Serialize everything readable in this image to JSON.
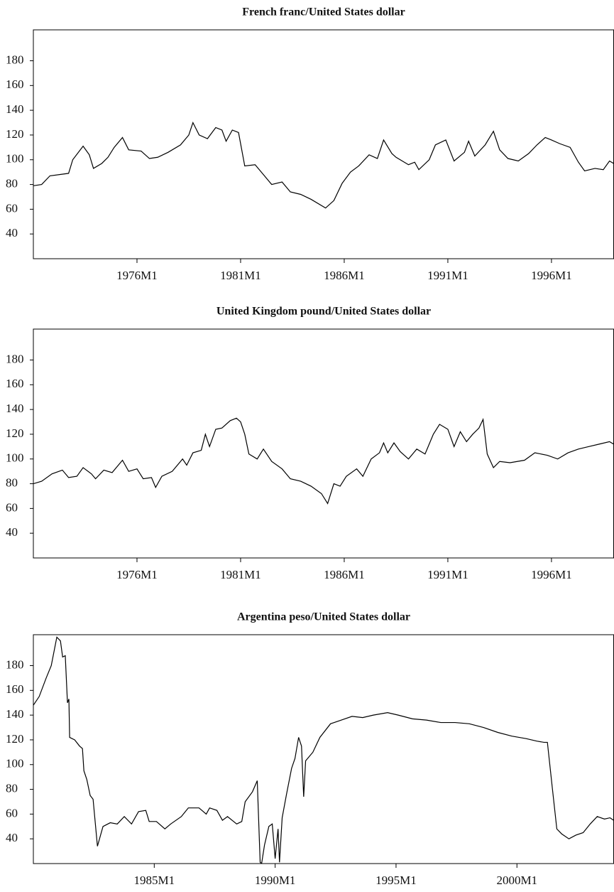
{
  "chart_data": [
    {
      "type": "line",
      "title": "French franc/United States dollar",
      "x": [
        1971.0,
        1971.4,
        1971.8,
        1972.7,
        1972.9,
        1973.4,
        1973.7,
        1973.9,
        1974.3,
        1974.6,
        1974.9,
        1975.3,
        1975.6,
        1976.2,
        1976.6,
        1977.0,
        1977.5,
        1978.1,
        1978.5,
        1978.7,
        1979.0,
        1979.4,
        1979.8,
        1980.1,
        1980.3,
        1980.6,
        1980.9,
        1981.2,
        1981.7,
        1982.1,
        1982.5,
        1983.0,
        1983.4,
        1983.9,
        1984.4,
        1985.1,
        1985.5,
        1985.9,
        1986.3,
        1986.7,
        1987.2,
        1987.6,
        1987.9,
        1988.3,
        1988.5,
        1989.1,
        1989.4,
        1989.6,
        1990.1,
        1990.4,
        1990.9,
        1991.3,
        1991.8,
        1992.0,
        1992.3,
        1992.8,
        1993.2,
        1993.5,
        1993.9,
        1994.4,
        1994.9,
        1995.3,
        1995.7,
        1996.0,
        1996.4,
        1996.9,
        1997.3,
        1997.6,
        1998.1,
        1998.5,
        1998.8,
        1999.0
      ],
      "series": [
        {
          "color": "#000000",
          "values": [
            79,
            80,
            87,
            89,
            100,
            111,
            104,
            93,
            97,
            102,
            110,
            118,
            108,
            107,
            101,
            102,
            106,
            112,
            120,
            130,
            120,
            117,
            126,
            124,
            115,
            124,
            122,
            95,
            96,
            88,
            80,
            82,
            74,
            72,
            68,
            61,
            67,
            81,
            90,
            95,
            104,
            101,
            116,
            105,
            102,
            96,
            98,
            92,
            100,
            112,
            116,
            99,
            106,
            115,
            103,
            112,
            123,
            108,
            101,
            99,
            105,
            112,
            118,
            116,
            113,
            110,
            98,
            91,
            93,
            92,
            99,
            97
          ]
        }
      ],
      "xlim": [
        1971,
        1999
      ],
      "xticks": [
        {
          "value": 1976,
          "label": "1976M1"
        },
        {
          "value": 1981,
          "label": "1981M1"
        },
        {
          "value": 1986,
          "label": "1986M1"
        },
        {
          "value": 1991,
          "label": "1991M1"
        },
        {
          "value": 1996,
          "label": "1996M1"
        }
      ],
      "ylim": [
        20,
        205
      ],
      "yticks": [
        40,
        60,
        80,
        100,
        120,
        140,
        160,
        180
      ]
    },
    {
      "type": "line",
      "title": "United Kingdom pound/United States dollar",
      "x": [
        1971.0,
        1971.4,
        1971.9,
        1972.4,
        1972.7,
        1973.1,
        1973.4,
        1973.8,
        1974.0,
        1974.4,
        1974.8,
        1975.3,
        1975.6,
        1976.0,
        1976.3,
        1976.7,
        1976.9,
        1977.2,
        1977.7,
        1978.2,
        1978.4,
        1978.7,
        1979.1,
        1979.3,
        1979.5,
        1979.8,
        1980.1,
        1980.5,
        1980.8,
        1981.0,
        1981.2,
        1981.4,
        1981.8,
        1982.1,
        1982.5,
        1983.0,
        1983.4,
        1983.9,
        1984.4,
        1984.9,
        1985.2,
        1985.5,
        1985.8,
        1986.1,
        1986.6,
        1986.9,
        1987.3,
        1987.7,
        1987.9,
        1988.1,
        1988.4,
        1988.7,
        1989.1,
        1989.5,
        1989.9,
        1990.3,
        1990.6,
        1991.0,
        1991.3,
        1991.6,
        1991.9,
        1992.2,
        1992.5,
        1992.7,
        1992.9,
        1993.2,
        1993.5,
        1994.0,
        1994.7,
        1995.2,
        1995.8,
        1996.3,
        1996.8,
        1997.3,
        1997.8,
        1998.3,
        1998.8,
        1999.0
      ],
      "series": [
        {
          "color": "#000000",
          "values": [
            80,
            82,
            88,
            91,
            85,
            86,
            93,
            88,
            84,
            91,
            89,
            99,
            90,
            92,
            84,
            85,
            77,
            86,
            90,
            100,
            95,
            105,
            107,
            120,
            110,
            124,
            125,
            131,
            133,
            130,
            120,
            104,
            100,
            108,
            98,
            92,
            84,
            82,
            78,
            72,
            64,
            80,
            78,
            86,
            92,
            86,
            100,
            105,
            113,
            105,
            113,
            106,
            100,
            108,
            104,
            120,
            128,
            124,
            110,
            122,
            114,
            120,
            125,
            132,
            104,
            93,
            98,
            97,
            99,
            105,
            103,
            100,
            105,
            108,
            110,
            112,
            114,
            112
          ]
        }
      ],
      "xlim": [
        1971,
        1999
      ],
      "xticks": [
        {
          "value": 1976,
          "label": "1976M1"
        },
        {
          "value": 1981,
          "label": "1981M1"
        },
        {
          "value": 1986,
          "label": "1986M1"
        },
        {
          "value": 1991,
          "label": "1991M1"
        },
        {
          "value": 1996,
          "label": "1996M1"
        }
      ],
      "ylim": [
        20,
        205
      ],
      "yticks": [
        40,
        60,
        80,
        100,
        120,
        140,
        160,
        180
      ]
    },
    {
      "type": "line",
      "title": "Argentina peso/United States dollar",
      "x": [
        1980.0,
        1980.24,
        1980.53,
        1980.74,
        1980.97,
        1981.12,
        1981.21,
        1981.32,
        1981.41,
        1981.47,
        1981.5,
        1981.71,
        1981.91,
        1982.03,
        1982.09,
        1982.21,
        1982.35,
        1982.47,
        1982.65,
        1982.88,
        1983.18,
        1983.47,
        1983.76,
        1984.06,
        1984.35,
        1984.65,
        1984.79,
        1985.09,
        1985.44,
        1985.68,
        1986.12,
        1986.41,
        1986.85,
        1987.15,
        1987.29,
        1987.59,
        1987.82,
        1988.03,
        1988.41,
        1988.62,
        1988.76,
        1989.06,
        1989.26,
        1989.38,
        1989.44,
        1989.56,
        1989.74,
        1989.88,
        1990.0,
        1990.12,
        1990.18,
        1990.29,
        1990.47,
        1990.68,
        1990.82,
        1990.97,
        1991.09,
        1991.18,
        1991.26,
        1991.56,
        1991.85,
        1992.29,
        1992.74,
        1993.18,
        1993.62,
        1994.06,
        1994.65,
        1995.09,
        1995.68,
        1996.26,
        1996.85,
        1997.44,
        1998.03,
        1998.62,
        1999.21,
        1999.79,
        2000.38,
        2000.82,
        2001.12,
        2001.26,
        2001.47,
        2001.65,
        2001.85,
        2002.15,
        2002.44,
        2002.74,
        2003.03,
        2003.32,
        2003.62,
        2003.85,
        2004.0
      ],
      "series": [
        {
          "color": "#000000",
          "values": [
            148,
            155,
            170,
            180,
            203,
            200,
            187,
            188,
            150,
            153,
            122,
            120,
            115,
            113,
            95,
            88,
            75,
            72,
            34,
            50,
            53,
            52,
            58,
            52,
            62,
            63,
            54,
            54,
            48,
            52,
            58,
            65,
            65,
            60,
            65,
            63,
            55,
            58,
            52,
            54,
            70,
            78,
            87,
            21,
            20,
            35,
            50,
            52,
            24,
            48,
            21,
            57,
            76,
            97,
            105,
            122,
            115,
            74,
            103,
            110,
            122,
            133,
            136,
            139,
            138,
            140,
            142,
            140,
            137,
            136,
            134,
            134,
            133,
            130,
            126,
            123,
            121,
            119,
            118,
            118,
            80,
            48,
            44,
            40,
            43,
            45,
            52,
            58,
            56,
            57,
            55
          ]
        }
      ],
      "xlim": [
        1980,
        2004
      ],
      "xticks": [
        {
          "value": 1985,
          "label": "1985M1"
        },
        {
          "value": 1990,
          "label": "1990M1"
        },
        {
          "value": 1995,
          "label": "1995M1"
        },
        {
          "value": 2000,
          "label": "2000M1"
        }
      ],
      "ylim": [
        20,
        205
      ],
      "yticks": [
        40,
        60,
        80,
        100,
        120,
        140,
        160,
        180
      ]
    }
  ]
}
